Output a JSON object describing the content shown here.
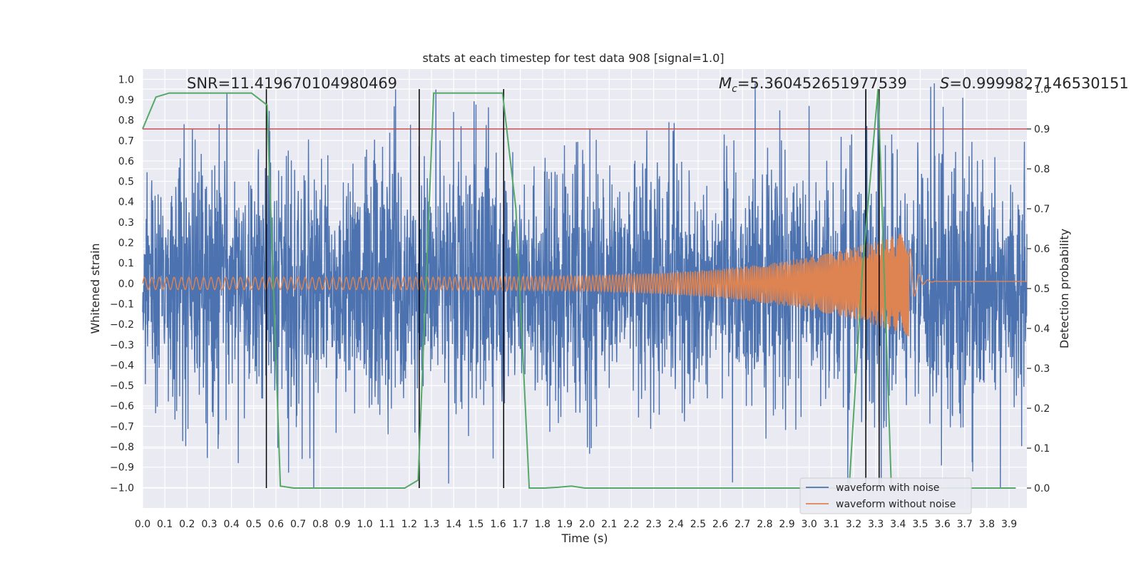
{
  "chart_data": {
    "type": "line",
    "title": "stats at each timestep for test data 908 [signal=1.0]",
    "xlabel": "Time (s)",
    "ylabel": "Whitened strain",
    "ylabel_right": "Detection probability",
    "xlim": [
      0.0,
      3.98
    ],
    "ylim": [
      -1.1,
      1.05
    ],
    "ylim_right": [
      -0.05,
      1.05
    ],
    "x_ticks": [
      0.0,
      0.1,
      0.2,
      0.3,
      0.4,
      0.5,
      0.6,
      0.7,
      0.8,
      0.9,
      1.0,
      1.1,
      1.2,
      1.3,
      1.4,
      1.5,
      1.6,
      1.7,
      1.8,
      1.9,
      2.0,
      2.1,
      2.2,
      2.3,
      2.4,
      2.5,
      2.6,
      2.7,
      2.8,
      2.9,
      3.0,
      3.1,
      3.2,
      3.3,
      3.4,
      3.5,
      3.6,
      3.7,
      3.8,
      3.9
    ],
    "x_tick_labels": [
      "0.0",
      "0.1",
      "0.2",
      "0.3",
      "0.4",
      "0.5",
      "0.6",
      "0.7",
      "0.8",
      "0.9",
      "1.0",
      "1.1",
      "1.2",
      "1.3",
      "1.4",
      "1.5",
      "1.6",
      "1.7",
      "1.8",
      "1.9",
      "2.0",
      "2.1",
      "2.2",
      "2.3",
      "2.4",
      "2.5",
      "2.6",
      "2.7",
      "2.8",
      "2.9",
      "3.0",
      "3.1",
      "3.2",
      "3.3",
      "3.4",
      "3.5",
      "3.6",
      "3.7",
      "3.8",
      "3.9"
    ],
    "y_ticks": [
      1.0,
      0.9,
      0.8,
      0.7,
      0.6,
      0.5,
      0.4,
      0.3,
      0.2,
      0.1,
      0.0,
      -0.1,
      -0.2,
      -0.3,
      -0.4,
      -0.5,
      -0.6,
      -0.7,
      -0.8,
      -0.9,
      -1.0
    ],
    "y_tick_labels": [
      "1.0",
      "0.9",
      "0.8",
      "0.7",
      "0.6",
      "0.5",
      "0.4",
      "0.3",
      "0.2",
      "0.1",
      "0.0",
      "−0.1",
      "−0.2",
      "−0.3",
      "−0.4",
      "−0.5",
      "−0.6",
      "−0.7",
      "−0.8",
      "−0.9",
      "−1.0"
    ],
    "y_right_ticks": [
      1.0,
      0.9,
      0.8,
      0.7,
      0.6,
      0.5,
      0.4,
      0.3,
      0.2,
      0.1,
      0.0
    ],
    "y_right_tick_labels": [
      "1.0",
      "0.9",
      "0.8",
      "0.7",
      "0.6",
      "0.5",
      "0.4",
      "0.3",
      "0.2",
      "0.1",
      "0.0"
    ],
    "grid": true,
    "legend_position": "bottom-right",
    "annotations": {
      "snr": "SNR=11.419670104980469",
      "mc_symbol": "M",
      "mc_sub": "c",
      "mc_value": "=5.360452651977539",
      "s_symbol": "S",
      "s_value": "=0.9999827146530151"
    },
    "colors": {
      "noise": "#4c72b0",
      "clean": "#dd8452",
      "prob": "#55a868",
      "threshold": "#c44e52",
      "vline": "#000000",
      "background": "#eaeaf2",
      "grid": "#ffffff"
    },
    "series": [
      {
        "name": "waveform with noise",
        "axis": "left",
        "description_of_shape": "dense noise, roughly gaussian, amplitude mostly within ±0.6 with spikes to ±1.0",
        "envelope": 0.28,
        "peaks": [
          [
            0.38,
            0.93
          ],
          [
            0.77,
            -1.0
          ],
          [
            1.32,
            0.95
          ],
          [
            1.4,
            0.84
          ],
          [
            3.0,
            0.87
          ],
          [
            3.86,
            -1.0
          ],
          [
            3.31,
            0.95
          ],
          [
            0.43,
            -0.88
          ],
          [
            0.34,
            -0.81
          ]
        ]
      },
      {
        "name": "waveform without noise",
        "axis": "left",
        "chirp_start": 0.0,
        "chirp_end": 3.45,
        "amplitude_start": 0.03,
        "amplitude_end": 0.26,
        "freq_start": 30,
        "freq_end": 200,
        "post_merger_value": 0.01
      },
      {
        "axis": "right",
        "x": [
          0.0,
          0.06,
          0.12,
          0.18,
          0.24,
          0.31,
          0.37,
          0.43,
          0.49,
          0.56,
          0.62,
          0.68,
          0.74,
          0.81,
          0.87,
          0.93,
          0.99,
          1.06,
          1.12,
          1.18,
          1.24,
          1.31,
          1.37,
          1.43,
          1.49,
          1.56,
          1.62,
          1.68,
          1.74,
          1.81,
          1.87,
          1.93,
          1.99,
          2.06,
          2.12,
          2.18,
          2.24,
          2.31,
          2.37,
          2.43,
          2.49,
          2.56,
          2.62,
          2.68,
          2.74,
          2.81,
          2.87,
          2.93,
          2.99,
          3.06,
          3.12,
          3.18,
          3.24,
          3.31,
          3.37,
          3.43,
          3.49,
          3.56,
          3.62,
          3.68,
          3.74,
          3.81,
          3.87,
          3.93
        ],
        "values": [
          0.9,
          0.98,
          0.99,
          0.99,
          0.99,
          0.99,
          0.99,
          0.99,
          0.99,
          0.96,
          0.005,
          0.0,
          0.0,
          0.0,
          0.0,
          0.0,
          0.0,
          0.0,
          0.0,
          0.0,
          0.02,
          0.99,
          0.99,
          0.99,
          0.99,
          0.99,
          0.99,
          0.7,
          0.0,
          0.0,
          0.002,
          0.005,
          0.0,
          0.0,
          0.0,
          0.0,
          0.0,
          0.0,
          0.0,
          0.0,
          0.0,
          0.0,
          0.0,
          0.0,
          0.0,
          0.0,
          0.0,
          0.0,
          0.0,
          0.0,
          0.0,
          0.0,
          0.55,
          1.0,
          0.0,
          0.0,
          0.0,
          0.0,
          0.0,
          0.0,
          0.0,
          0.0,
          0.0,
          0.0
        ]
      }
    ],
    "threshold_right": 0.9,
    "vertical_lines_x": [
      0.557,
      1.245,
      1.625,
      3.255,
      3.315
    ],
    "legend": [
      "waveform with noise",
      "waveform without noise"
    ]
  }
}
